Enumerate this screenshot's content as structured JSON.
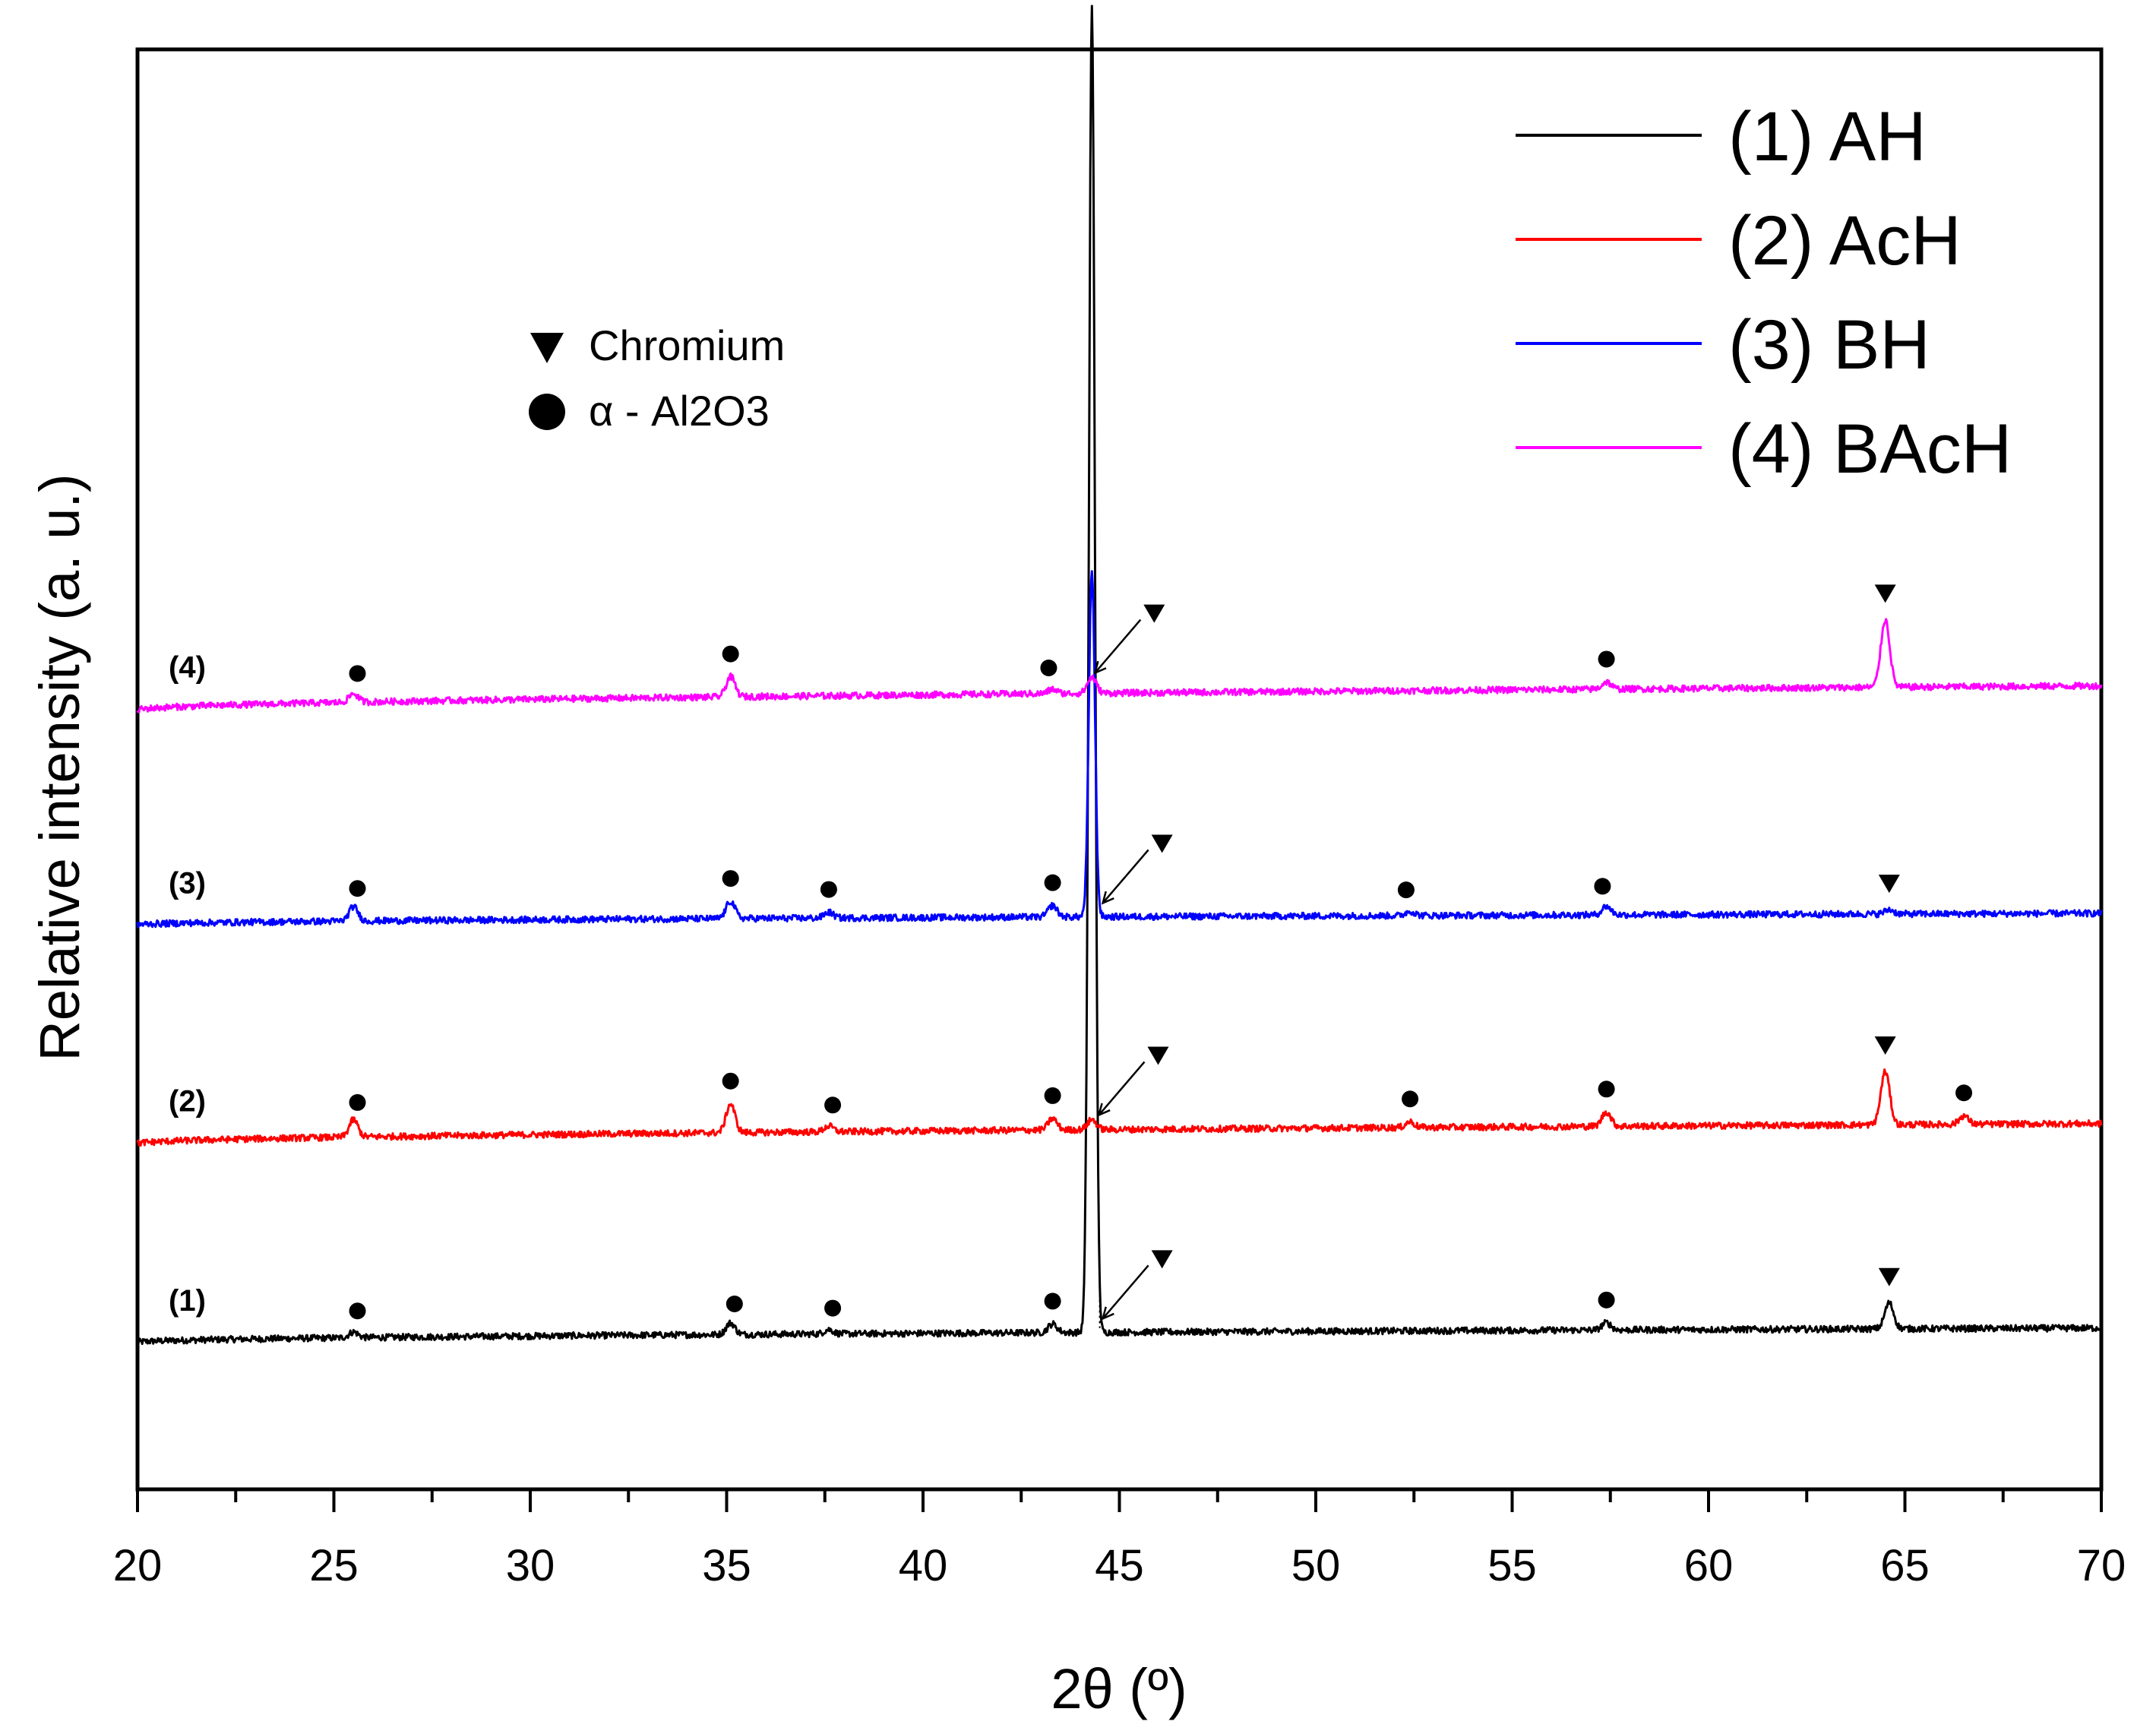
{
  "chart_data": {
    "type": "line",
    "title": "",
    "xlabel": "2θ (º)",
    "ylabel": "Relative intensity (a. u.)",
    "xlim": [
      20,
      70
    ],
    "ylim": [
      0,
      100
    ],
    "xticks": [
      "20",
      "25",
      "30",
      "35",
      "40",
      "45",
      "50",
      "55",
      "60",
      "65",
      "70"
    ],
    "grid": false,
    "legend_position": "top-right",
    "marker_legend": [
      {
        "symbol": "triangle-down",
        "label": "Chromium"
      },
      {
        "symbol": "circle",
        "label": "α - Al2O3"
      }
    ],
    "series": [
      {
        "name": "(1) AH",
        "tag": "(1)",
        "color": "#000000",
        "baseline": [
          10.2,
          11.2
        ],
        "peaks": [
          [
            25.5,
            0.4
          ],
          [
            35.1,
            0.8
          ],
          [
            37.6,
            0.3
          ],
          [
            43.3,
            0.6
          ],
          [
            44.3,
            92.0
          ],
          [
            57.4,
            0.5
          ],
          [
            64.6,
            1.8
          ]
        ],
        "al2o3_markers": [
          25.6,
          35.2,
          37.7,
          43.3,
          57.4
        ],
        "chromium_markers": [
          64.6
        ],
        "chromium_arrow_peak": 44.5
      },
      {
        "name": "(2) AcH",
        "tag": "(2)",
        "color": "#ff0000",
        "baseline": [
          24.0,
          25.4
        ],
        "peaks": [
          [
            25.5,
            1.2
          ],
          [
            35.1,
            2.0
          ],
          [
            37.6,
            0.4
          ],
          [
            43.3,
            0.8
          ],
          [
            44.3,
            0.7
          ],
          [
            52.4,
            0.4
          ],
          [
            57.4,
            1.0
          ],
          [
            64.5,
            3.7
          ],
          [
            66.5,
            0.6
          ]
        ],
        "al2o3_markers": [
          25.6,
          35.1,
          37.7,
          43.3,
          52.4,
          57.4,
          66.5
        ],
        "chromium_markers": [
          64.5
        ],
        "chromium_arrow_peak": 44.4
      },
      {
        "name": "(3) BH",
        "tag": "(3)",
        "color": "#0000ff",
        "baseline": [
          39.2,
          40.0
        ],
        "peaks": [
          [
            25.5,
            1.0
          ],
          [
            35.1,
            1.2
          ],
          [
            37.6,
            0.4
          ],
          [
            43.3,
            0.8
          ],
          [
            44.3,
            24.0
          ],
          [
            52.4,
            0.3
          ],
          [
            57.4,
            0.6
          ],
          [
            64.6,
            0.3
          ]
        ],
        "al2o3_markers": [
          25.6,
          35.1,
          37.6,
          43.3,
          52.3,
          57.3
        ],
        "chromium_markers": [
          64.6
        ],
        "chromium_arrow_peak": 44.5
      },
      {
        "name": "(4) BAcH",
        "tag": "(4)",
        "color": "#ff00ff",
        "baseline": [
          54.1,
          55.8
        ],
        "peaks": [
          [
            25.5,
            0.6
          ],
          [
            35.1,
            1.4
          ],
          [
            43.3,
            0.3
          ],
          [
            44.3,
            1.1
          ],
          [
            57.4,
            0.5
          ],
          [
            64.5,
            4.7
          ]
        ],
        "al2o3_markers": [
          25.6,
          35.1,
          43.2,
          57.4
        ],
        "chromium_markers": [
          64.5
        ],
        "chromium_arrow_peak": 44.3
      }
    ]
  }
}
